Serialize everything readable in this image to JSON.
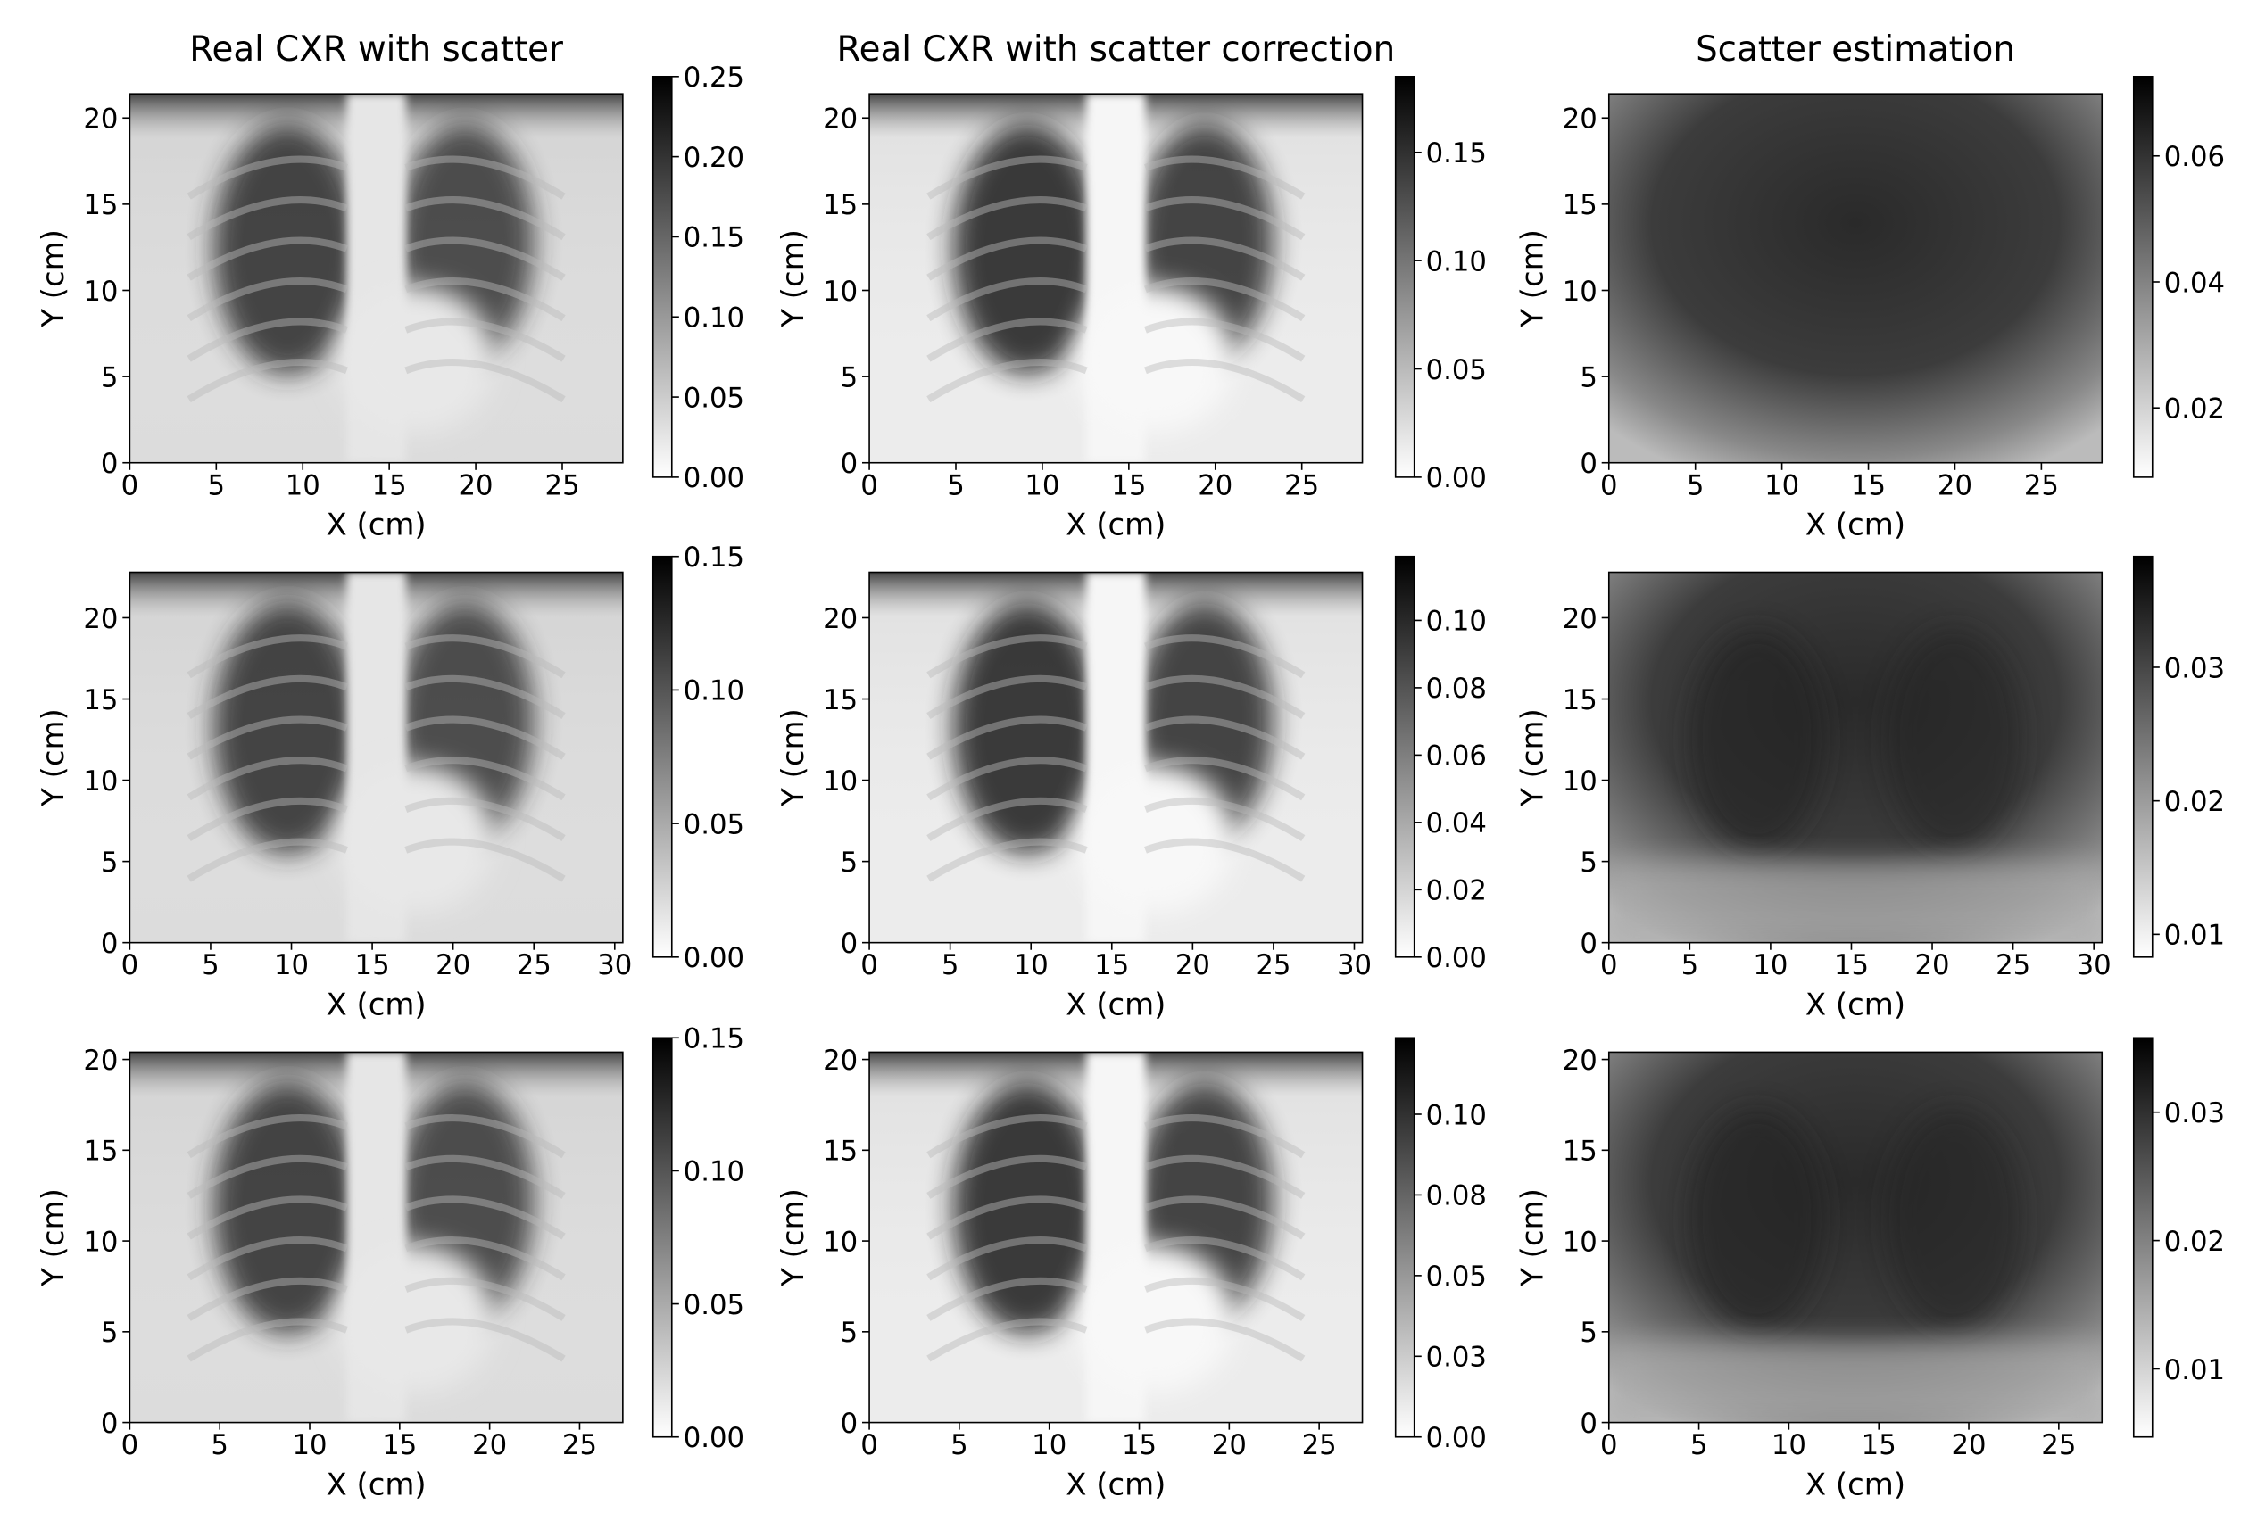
{
  "chart_data": [
    {
      "type": "image",
      "title": "Real CXR with scatter",
      "xlabel": "X (cm)",
      "ylabel": "Y (cm)",
      "colormap": "Greys",
      "xlim": [
        0,
        28.5
      ],
      "xticks": [
        0,
        5,
        10,
        15,
        20,
        25
      ],
      "ylim": [
        0,
        21.4
      ],
      "yticks": [
        0,
        5,
        10,
        15,
        20
      ],
      "colorbar": {
        "lim": [
          0,
          0.25
        ],
        "ticks": [
          {
            "value": 0,
            "label": "0.00"
          },
          0.05,
          {
            "value": 0.1,
            "label": "0.10"
          },
          0.15,
          {
            "value": 0.2,
            "label": "0.20"
          },
          0.25
        ]
      }
    },
    {
      "type": "image",
      "title": "Real CXR with scatter correction",
      "xlabel": "X (cm)",
      "ylabel": "Y (cm)",
      "colormap": "Greys",
      "xlim": [
        0,
        28.5
      ],
      "xticks": [
        0,
        5,
        10,
        15,
        20,
        25
      ],
      "ylim": [
        0,
        21.4
      ],
      "yticks": [
        0,
        5,
        10,
        15,
        20
      ],
      "colorbar": {
        "lim": [
          0,
          0.185
        ],
        "ticks": [
          {
            "value": 0,
            "label": "0.00"
          },
          0.05,
          {
            "value": 0.1,
            "label": "0.10"
          },
          0.15
        ]
      }
    },
    {
      "type": "image",
      "title": "Scatter estimation",
      "xlabel": "X (cm)",
      "ylabel": "Y (cm)",
      "colormap": "Greys",
      "xlim": [
        0,
        28.5
      ],
      "xticks": [
        0,
        5,
        10,
        15,
        20,
        25
      ],
      "ylim": [
        0,
        21.4
      ],
      "yticks": [
        0,
        5,
        10,
        15,
        20
      ],
      "colorbar": {
        "lim": [
          0.009,
          0.0726
        ],
        "ticks": [
          0.02,
          0.04,
          0.06
        ]
      }
    },
    {
      "type": "image",
      "xlabel": "X (cm)",
      "ylabel": "Y (cm)",
      "colormap": "Greys",
      "xlim": [
        0,
        30.5
      ],
      "xticks": [
        0,
        5,
        10,
        15,
        20,
        25,
        30
      ],
      "ylim": [
        0,
        22.8
      ],
      "yticks": [
        0,
        5,
        10,
        15,
        20
      ],
      "colorbar": {
        "lim": [
          0,
          0.15
        ],
        "ticks": [
          {
            "value": 0,
            "label": "0.00"
          },
          0.05,
          {
            "value": 0.1,
            "label": "0.10"
          },
          0.15
        ]
      }
    },
    {
      "type": "image",
      "xlabel": "X (cm)",
      "ylabel": "Y (cm)",
      "colormap": "Greys",
      "xlim": [
        0,
        30.5
      ],
      "xticks": [
        0,
        5,
        10,
        15,
        20,
        25,
        30
      ],
      "ylim": [
        0,
        22.8
      ],
      "yticks": [
        0,
        5,
        10,
        15,
        20
      ],
      "colorbar": {
        "lim": [
          0,
          0.119
        ],
        "ticks": [
          {
            "value": 0,
            "label": "0.00"
          },
          0.02,
          0.04,
          0.06,
          0.08,
          {
            "value": 0.1,
            "label": "0.10"
          }
        ]
      }
    },
    {
      "type": "image",
      "xlabel": "X (cm)",
      "ylabel": "Y (cm)",
      "colormap": "Greys",
      "xlim": [
        0,
        30.5
      ],
      "xticks": [
        0,
        5,
        10,
        15,
        20,
        25,
        30
      ],
      "ylim": [
        0,
        22.8
      ],
      "yticks": [
        0,
        5,
        10,
        15,
        20
      ],
      "colorbar": {
        "lim": [
          0.0083,
          0.0383
        ],
        "ticks": [
          0.01,
          0.02,
          0.03
        ]
      }
    },
    {
      "type": "image",
      "xlabel": "X (cm)",
      "ylabel": "Y (cm)",
      "colormap": "Greys",
      "xlim": [
        0,
        27.4
      ],
      "xticks": [
        0,
        5,
        10,
        15,
        20,
        25
      ],
      "ylim": [
        0,
        20.4
      ],
      "yticks": [
        0,
        5,
        10,
        15,
        20
      ],
      "colorbar": {
        "lim": [
          0,
          0.15
        ],
        "ticks": [
          {
            "value": 0,
            "label": "0.00"
          },
          0.05,
          {
            "value": 0.1,
            "label": "0.10"
          },
          0.15
        ]
      }
    },
    {
      "type": "image",
      "xlabel": "X (cm)",
      "ylabel": "Y (cm)",
      "colormap": "Greys",
      "xlim": [
        0,
        27.4
      ],
      "xticks": [
        0,
        5,
        10,
        15,
        20,
        25
      ],
      "ylim": [
        0,
        20.4
      ],
      "yticks": [
        0,
        5,
        10,
        15,
        20
      ],
      "colorbar": {
        "lim": [
          0,
          0.1237
        ],
        "ticks": [
          {
            "value": 0,
            "label": "0.00"
          },
          {
            "value": 0.025,
            "label": "0.03"
          },
          0.05,
          {
            "value": 0.075,
            "label": "0.08"
          },
          {
            "value": 0.1,
            "label": "0.10"
          }
        ]
      }
    },
    {
      "type": "image",
      "xlabel": "X (cm)",
      "ylabel": "Y (cm)",
      "colormap": "Greys",
      "xlim": [
        0,
        27.4
      ],
      "xticks": [
        0,
        5,
        10,
        15,
        20,
        25
      ],
      "ylim": [
        0,
        20.4
      ],
      "yticks": [
        0,
        5,
        10,
        15,
        20
      ],
      "colorbar": {
        "lim": [
          0.0047,
          0.0358
        ],
        "ticks": [
          0.01,
          0.02,
          0.03
        ]
      }
    }
  ]
}
